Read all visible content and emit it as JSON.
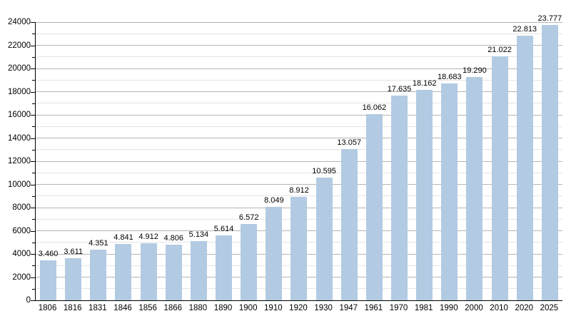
{
  "chart_data": {
    "type": "bar",
    "title": "",
    "xlabel": "",
    "ylabel": "",
    "categories": [
      "1806",
      "1816",
      "1831",
      "1846",
      "1856",
      "1866",
      "1880",
      "1890",
      "1900",
      "1910",
      "1920",
      "1930",
      "1947",
      "1961",
      "1970",
      "1981",
      "1990",
      "2000",
      "2010",
      "2020",
      "2025"
    ],
    "values": [
      3460,
      3611,
      4351,
      4841,
      4912,
      4806,
      5134,
      5614,
      6572,
      8049,
      8912,
      10595,
      13057,
      16062,
      17635,
      18162,
      18683,
      19290,
      21022,
      22813,
      23777
    ],
    "value_labels": [
      "3.460",
      "3.611",
      "4.351",
      "4.841",
      "4.912",
      "4.806",
      "5.134",
      "5.614",
      "6.572",
      "8.049",
      "8.912",
      "10.595",
      "13.057",
      "16.062",
      "17.635",
      "18.162",
      "18.683",
      "19.290",
      "21.022",
      "22.813",
      "23.777"
    ],
    "ylim": [
      0,
      24000
    ],
    "y_major_step": 2000,
    "y_minor_step": 1000,
    "y_tick_labels": [
      "0",
      "2000",
      "4000",
      "6000",
      "8000",
      "10000",
      "12000",
      "14000",
      "16000",
      "18000",
      "20000",
      "22000",
      "24000"
    ],
    "grid": "on",
    "legend_position": "none",
    "colors": {
      "bar_fill": "#b2cbe2",
      "grid_major": "#b5b5b5",
      "grid_minor": "#e4e4e4",
      "axis": "#000000",
      "text": "#000000",
      "background": "#ffffff"
    }
  }
}
